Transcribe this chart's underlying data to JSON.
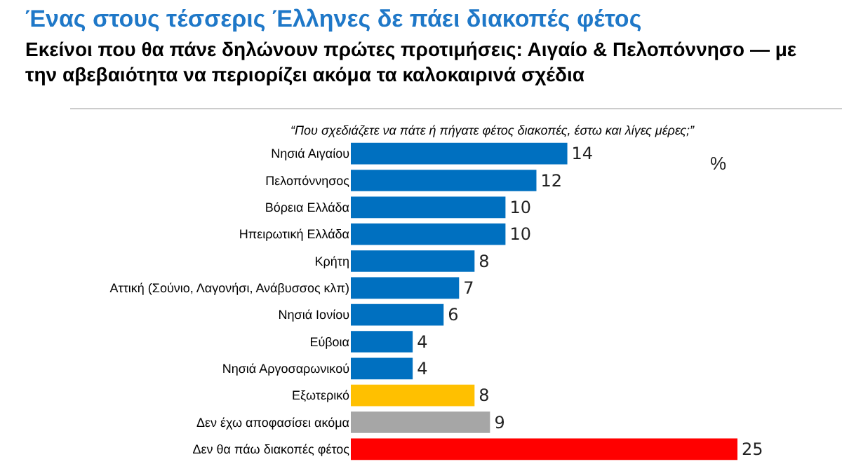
{
  "chart_data": {
    "type": "bar",
    "orientation": "horizontal",
    "title": "Ένας στους τέσσερις Έλληνες δε πάει διακοπές φέτος",
    "subtitle": "Εκείνοι που θα πάνε δηλώνουν πρώτες προτιμήσεις: Αιγαίο & Πελοπόννησο — με την αβεβαιότητα να περιορίζει ακόμα τα καλοκαιρινά σχέδια",
    "annotations": [
      "“Που σχεδιάζετε να πάτε ή πήγατε φέτος διακοπές, έστω και λίγες μέρες;”",
      "%"
    ],
    "categories": [
      "Νησιά Αιγαίου",
      "Πελοπόννησος",
      "Βόρεια Ελλάδα",
      "Ηπειρωτική Ελλάδα",
      "Κρήτη",
      "Αττική (Σούνιο, Λαγονήσι, Ανάβυσσος κλπ)",
      "Νησιά Ιονίου",
      "Εύβοια",
      "Νησιά Αργοσαρωνικού",
      "Εξωτερικό",
      "Δεν έχω αποφασίσει ακόμα",
      "Δεν θα πάω διακοπές φέτος"
    ],
    "values": [
      14,
      12,
      10,
      10,
      8,
      7,
      6,
      4,
      4,
      8,
      9,
      25
    ],
    "colors": [
      "#0070c0",
      "#0070c0",
      "#0070c0",
      "#0070c0",
      "#0070c0",
      "#0070c0",
      "#0070c0",
      "#0070c0",
      "#0070c0",
      "#ffc000",
      "#a6a6a6",
      "#ff0000"
    ],
    "data_labels": true
  }
}
